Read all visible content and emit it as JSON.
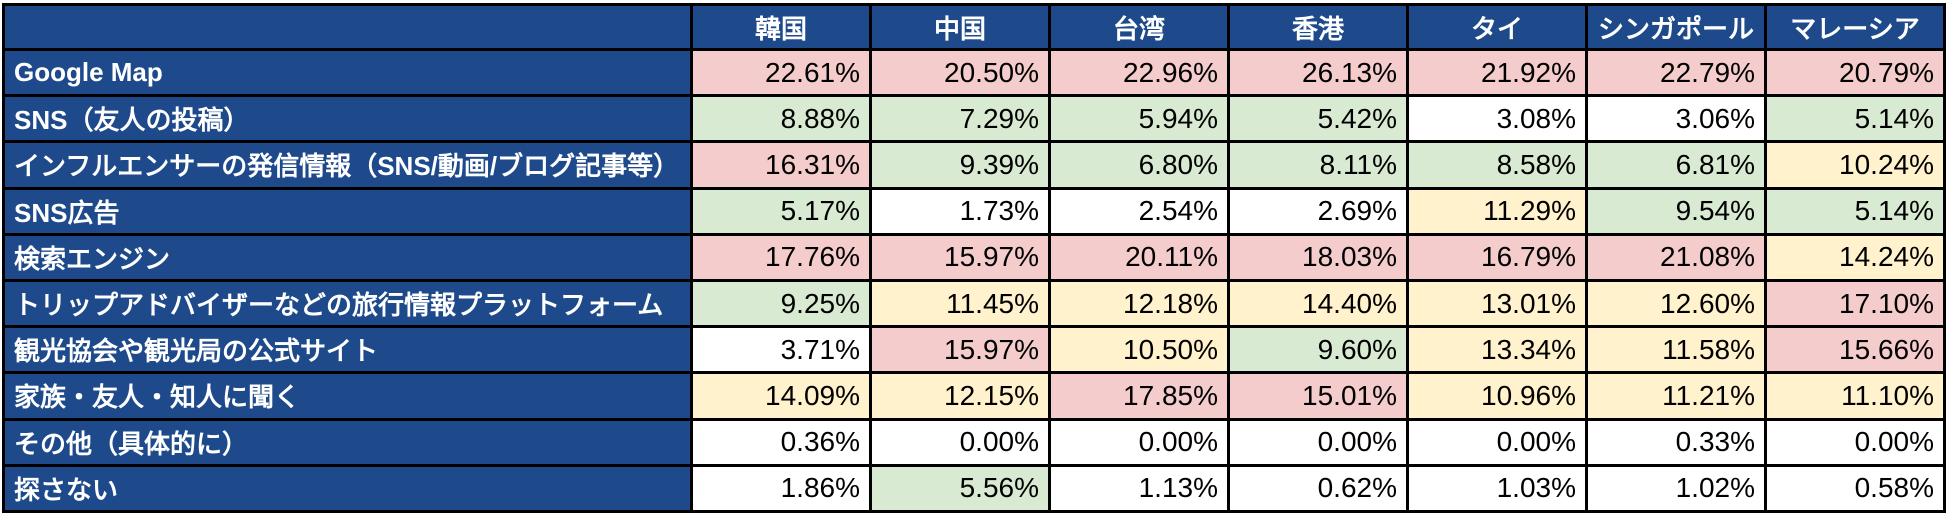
{
  "palette": {
    "header_bg": "#1e4a8b",
    "header_text": "#ffffff",
    "border": "#000000",
    "cell_pink": "#f4cccc",
    "cell_green": "#d9ead3",
    "cell_yellow": "#fff2cc",
    "cell_white": "#ffffff",
    "value_text": "#000000"
  },
  "table": {
    "corner_label": "",
    "columns": [
      "韓国",
      "中国",
      "台湾",
      "香港",
      "タイ",
      "シンガポール",
      "マレーシア"
    ],
    "rows": [
      {
        "label": "Google Map",
        "values": [
          "22.61%",
          "20.50%",
          "22.96%",
          "26.13%",
          "21.92%",
          "22.79%",
          "20.79%"
        ],
        "colors": [
          "pink",
          "pink",
          "pink",
          "pink",
          "pink",
          "pink",
          "pink"
        ]
      },
      {
        "label": "SNS（友人の投稿）",
        "values": [
          "8.88%",
          "7.29%",
          "5.94%",
          "5.42%",
          "3.08%",
          "3.06%",
          "5.14%"
        ],
        "colors": [
          "green",
          "green",
          "green",
          "green",
          "white",
          "white",
          "green"
        ]
      },
      {
        "label": "インフルエンサーの発信情報（SNS/動画/ブログ記事等）",
        "values": [
          "16.31%",
          "9.39%",
          "6.80%",
          "8.11%",
          "8.58%",
          "6.81%",
          "10.24%"
        ],
        "colors": [
          "pink",
          "green",
          "green",
          "green",
          "green",
          "green",
          "yellow"
        ]
      },
      {
        "label": "SNS広告",
        "values": [
          "5.17%",
          "1.73%",
          "2.54%",
          "2.69%",
          "11.29%",
          "9.54%",
          "5.14%"
        ],
        "colors": [
          "green",
          "white",
          "white",
          "white",
          "yellow",
          "green",
          "green"
        ]
      },
      {
        "label": "検索エンジン",
        "values": [
          "17.76%",
          "15.97%",
          "20.11%",
          "18.03%",
          "16.79%",
          "21.08%",
          "14.24%"
        ],
        "colors": [
          "pink",
          "pink",
          "pink",
          "pink",
          "pink",
          "pink",
          "yellow"
        ]
      },
      {
        "label": "トリップアドバイザーなどの旅行情報プラットフォーム",
        "values": [
          "9.25%",
          "11.45%",
          "12.18%",
          "14.40%",
          "13.01%",
          "12.60%",
          "17.10%"
        ],
        "colors": [
          "green",
          "yellow",
          "yellow",
          "yellow",
          "yellow",
          "yellow",
          "pink"
        ]
      },
      {
        "label": "観光協会や観光局の公式サイト",
        "values": [
          "3.71%",
          "15.97%",
          "10.50%",
          "9.60%",
          "13.34%",
          "11.58%",
          "15.66%"
        ],
        "colors": [
          "white",
          "pink",
          "yellow",
          "green",
          "yellow",
          "yellow",
          "pink"
        ]
      },
      {
        "label": "家族・友人・知人に聞く",
        "values": [
          "14.09%",
          "12.15%",
          "17.85%",
          "15.01%",
          "10.96%",
          "11.21%",
          "11.10%"
        ],
        "colors": [
          "yellow",
          "yellow",
          "pink",
          "pink",
          "yellow",
          "yellow",
          "yellow"
        ]
      },
      {
        "label": "その他（具体的に）",
        "values": [
          "0.36%",
          "0.00%",
          "0.00%",
          "0.00%",
          "0.00%",
          "0.33%",
          "0.00%"
        ],
        "colors": [
          "white",
          "white",
          "white",
          "white",
          "white",
          "white",
          "white"
        ]
      },
      {
        "label": "探さない",
        "values": [
          "1.86%",
          "5.56%",
          "1.13%",
          "0.62%",
          "1.03%",
          "1.02%",
          "0.58%"
        ],
        "colors": [
          "white",
          "green",
          "white",
          "white",
          "white",
          "white",
          "white"
        ]
      }
    ]
  },
  "chart_data": {
    "type": "table",
    "title": "",
    "unit": "%",
    "categories": [
      "韓国",
      "中国",
      "台湾",
      "香港",
      "タイ",
      "シンガポール",
      "マレーシア"
    ],
    "series": [
      {
        "name": "Google Map",
        "values": [
          22.61,
          20.5,
          22.96,
          26.13,
          21.92,
          22.79,
          20.79
        ]
      },
      {
        "name": "SNS（友人の投稿）",
        "values": [
          8.88,
          7.29,
          5.94,
          5.42,
          3.08,
          3.06,
          5.14
        ]
      },
      {
        "name": "インフルエンサーの発信情報（SNS/動画/ブログ記事等）",
        "values": [
          16.31,
          9.39,
          6.8,
          8.11,
          8.58,
          6.81,
          10.24
        ]
      },
      {
        "name": "SNS広告",
        "values": [
          5.17,
          1.73,
          2.54,
          2.69,
          11.29,
          9.54,
          5.14
        ]
      },
      {
        "name": "検索エンジン",
        "values": [
          17.76,
          15.97,
          20.11,
          18.03,
          16.79,
          21.08,
          14.24
        ]
      },
      {
        "name": "トリップアドバイザーなどの旅行情報プラットフォーム",
        "values": [
          9.25,
          11.45,
          12.18,
          14.4,
          13.01,
          12.6,
          17.1
        ]
      },
      {
        "name": "観光協会や観光局の公式サイト",
        "values": [
          3.71,
          15.97,
          10.5,
          9.6,
          13.34,
          11.58,
          15.66
        ]
      },
      {
        "name": "家族・友人・知人に聞く",
        "values": [
          14.09,
          12.15,
          17.85,
          15.01,
          10.96,
          11.21,
          11.1
        ]
      },
      {
        "name": "その他（具体的に）",
        "values": [
          0.36,
          0.0,
          0.0,
          0.0,
          0.0,
          0.33,
          0.0
        ]
      },
      {
        "name": "探さない",
        "values": [
          1.86,
          5.56,
          1.13,
          0.62,
          1.03,
          1.02,
          0.58
        ]
      }
    ],
    "cell_highlight_colors": {
      "pink": "#f4cccc",
      "green": "#d9ead3",
      "yellow": "#fff2cc",
      "white": "#ffffff"
    }
  }
}
